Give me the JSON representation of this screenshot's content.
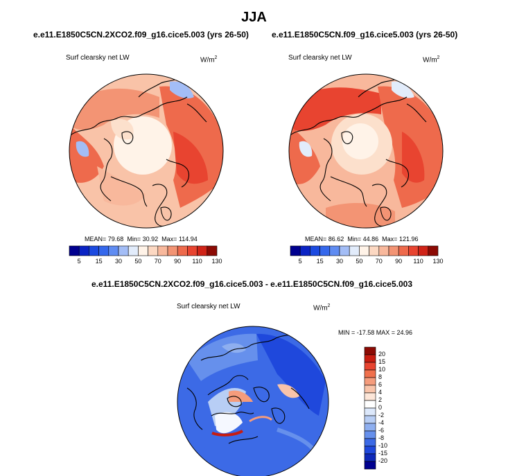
{
  "main_title": "JJA",
  "panels": [
    {
      "case": "e.e11.E1850C5CN.2XCO2.f09_g16.cice5.003 (yrs 26-50)",
      "variable": "Surf clearsky net LW",
      "units": "W/m",
      "units_exp": "2",
      "mean_label": "MEAN=",
      "mean": "79.68",
      "min_label": "Min=",
      "min": "30.92",
      "max_label": "Max=",
      "max": "114.94"
    },
    {
      "case": "e.e11.E1850C5CN.f09_g16.cice5.003 (yrs 26-50)",
      "variable": "Surf clearsky net LW",
      "units": "W/m",
      "units_exp": "2",
      "mean_label": "MEAN=",
      "mean": "86.62",
      "min_label": "Min=",
      "min": "44.86",
      "max_label": "Max=",
      "max": "121.96"
    }
  ],
  "colorbar_abs": {
    "colors": [
      "#00008f",
      "#0a23c4",
      "#1b4ae0",
      "#3568ec",
      "#5f8cf2",
      "#a3bdf6",
      "#e2ecfb",
      "#fff3e8",
      "#fcd8c2",
      "#f8b89c",
      "#f39474",
      "#ee6a4c",
      "#e84430",
      "#d02418",
      "#8c0a04"
    ],
    "labels": [
      "5",
      "15",
      "30",
      "50",
      "70",
      "90",
      "110",
      "130"
    ]
  },
  "diff_panel": {
    "title": "e.e11.E1850C5CN.2XCO2.f09_g16.cice5.003 - e.e11.E1850C5CN.f09_g16.cice5.003",
    "variable": "Surf clearsky net LW",
    "units": "W/m",
    "units_exp": "2",
    "stats": "MIN = -17.58 MAX =  24.96"
  },
  "colorbar_diff": {
    "colors": [
      "#8c0a04",
      "#c81c10",
      "#e84430",
      "#f0704c",
      "#f59c7c",
      "#f9c4aa",
      "#fde6d8",
      "#ffffff",
      "#dce8fb",
      "#b8cef5",
      "#8eaff0",
      "#6690ec",
      "#3c6ae6",
      "#1f48dc",
      "#0e28b8",
      "#00008f"
    ],
    "labels": [
      "20",
      "15",
      "10",
      "8",
      "6",
      "4",
      "2",
      "0",
      "-2",
      "-4",
      "-6",
      "-8",
      "-10",
      "-15",
      "-20"
    ]
  }
}
